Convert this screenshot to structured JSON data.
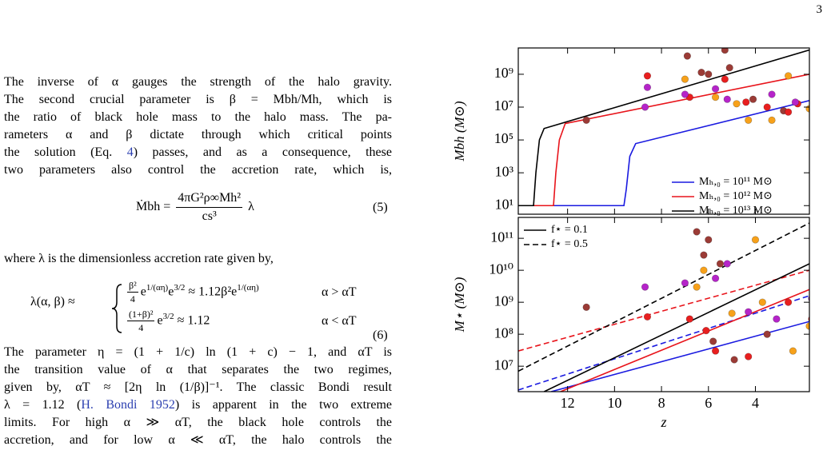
{
  "page_number": "3",
  "body": {
    "para1": [
      "The inverse of α gauges the strength of the halo gravity.",
      "The second crucial parameter is β = Mbh/Mh, which is",
      "the ratio of black hole mass to the halo mass. The pa-",
      "rameters α and β dictate through which critical points",
      [
        "the solution (Eq. ",
        "4",
        ") passes, and as a consequence, these"
      ],
      "two parameters also control the accretion rate, which is,"
    ],
    "para2": "where λ is the dimensionless accretion rate given by,",
    "para3": [
      "The parameter η = (1 + 1/c) ln (1 + c) − 1, and αT is",
      "the transition value of α that separates the two regimes,",
      "given by, αT ≈ [2η ln (1/β)]⁻¹. The classic Bondi result",
      [
        "λ = 1.12 (",
        "H. Bondi 1952",
        ") is apparent in the two extreme"
      ],
      "limits. For high α ≫ αT, the black hole controls the",
      "accretion, and for low α ≪ αT, the halo controls the"
    ]
  },
  "eq5": {
    "lhs": "Ṁbh =",
    "num": "4πG²ρ∞Mh²",
    "den": "cs³",
    "rhs": "λ",
    "number": "(5)"
  },
  "eq6": {
    "lhs": "λ(α, β) ≈",
    "case1": {
      "num": "β²",
      "den": "4",
      "parts": [
        "e",
        "1/(αη)",
        "e",
        "3/2",
        " ≈ 1.12β²e",
        "1/(αη)"
      ],
      "condition": "α > αT"
    },
    "case2": {
      "num": "(1+β)²",
      "den": "4",
      "parts": [
        "e",
        "3/2",
        " ≈ 1.12"
      ],
      "condition": "α < αT"
    },
    "number": "(6)"
  },
  "chart_data": [
    {
      "type": "line",
      "ylabel": "Mbh (M⊙)",
      "xlim": [
        14.1,
        1.7
      ],
      "xticks": [
        12,
        10,
        8,
        6,
        4
      ],
      "xtick_labels": false,
      "ylim": [
        3,
        40000000000.0
      ],
      "log_y": true,
      "yticks": [
        {
          "value": 10,
          "label": "10¹"
        },
        {
          "value": 1000,
          "label": "10³"
        },
        {
          "value": 100000,
          "label": "10⁵"
        },
        {
          "value": 10000000,
          "label": "10⁷"
        },
        {
          "value": 1000000000,
          "label": "10⁹"
        }
      ],
      "legend": "lower right",
      "series": [
        {
          "name": "Mₕ,₀ = 10¹¹ M⊙",
          "color": "#1a1ae0",
          "style": "solid",
          "x": [
            14.1,
            9.6,
            9.5,
            9.35,
            9.1,
            1.7
          ],
          "values": [
            10,
            10,
            100,
            10000,
            60000,
            25000000
          ]
        },
        {
          "name": "Mₕ,₀ = 10¹² M⊙",
          "color": "#e8141b",
          "style": "solid",
          "x": [
            14.1,
            12.6,
            12.5,
            12.35,
            12.1,
            1.7
          ],
          "values": [
            10,
            10,
            1000,
            100000,
            1000000,
            1000000000
          ]
        },
        {
          "name": "Mₕ,₀ = 10¹³ M⊙",
          "color": "#000000",
          "style": "solid",
          "x": [
            14.1,
            13.45,
            13.35,
            13.2,
            13.0,
            1.7
          ],
          "values": [
            10,
            10,
            1000,
            100000,
            500000,
            30000000000
          ]
        }
      ],
      "scatter": [
        {
          "color": "#9b3b36",
          "x": [
            11.2,
            6.9,
            6.0,
            5.3,
            5.1,
            4.1,
            2.8,
            6.3
          ],
          "values": [
            1600000,
            13000000000,
            1000000000,
            30000000000,
            2500000000,
            30000000,
            6000000,
            1300000000
          ]
        },
        {
          "color": "#e81f1f",
          "x": [
            8.6,
            6.8,
            5.3,
            4.4,
            3.5,
            2.6,
            2.2
          ],
          "values": [
            800000000,
            40000000,
            500000000,
            20000000,
            10000000,
            5000000,
            16000000
          ]
        },
        {
          "color": "#f7a11a",
          "x": [
            7.0,
            5.7,
            4.8,
            4.3,
            3.3,
            2.6,
            1.7
          ],
          "values": [
            500000000,
            40000000,
            16000000,
            1600000,
            1600000,
            800000000,
            8000000
          ]
        },
        {
          "color": "#b524c9",
          "x": [
            8.7,
            8.6,
            7.0,
            5.7,
            5.2,
            3.3,
            2.3
          ],
          "values": [
            10000000,
            160000000,
            60000000,
            130000000,
            30000000,
            60000000,
            20000000
          ]
        }
      ]
    },
    {
      "type": "line",
      "ylabel": "M⋆ (M⊙)",
      "xlabel": "z",
      "xlim": [
        14.1,
        1.7
      ],
      "xticks": [
        12,
        10,
        8,
        6,
        4
      ],
      "xtick_labels": true,
      "ylim": [
        1600000,
        450000000000
      ],
      "log_y": true,
      "yticks": [
        {
          "value": 10000000,
          "label": "10⁷"
        },
        {
          "value": 100000000,
          "label": "10⁸"
        },
        {
          "value": 1000000000,
          "label": "10⁹"
        },
        {
          "value": 10000000000,
          "label": "10¹⁰"
        },
        {
          "value": 100000000000,
          "label": "10¹¹"
        }
      ],
      "legend": "upper left",
      "legend_entries": [
        {
          "name": "f⋆ = 0.1",
          "style": "solid",
          "color": "#000000"
        },
        {
          "name": "f⋆ = 0.5",
          "style": "dashed",
          "color": "#000000"
        }
      ],
      "series": [
        {
          "color": "#1a1ae0",
          "style": "solid",
          "x": [
            12.7,
            1.7
          ],
          "values": [
            1600000,
            250000000
          ]
        },
        {
          "color": "#1a1ae0",
          "style": "dashed",
          "x": [
            14.1,
            1.7
          ],
          "values": [
            1800000,
            1600000000
          ]
        },
        {
          "color": "#e8141b",
          "style": "solid",
          "x": [
            12.3,
            1.7
          ],
          "values": [
            1600000,
            2500000000
          ]
        },
        {
          "color": "#e8141b",
          "style": "dashed",
          "x": [
            14.1,
            1.7
          ],
          "values": [
            30000000,
            10000000000
          ]
        },
        {
          "color": "#000000",
          "style": "solid",
          "x": [
            13.0,
            1.7
          ],
          "values": [
            1600000,
            16000000000
          ]
        },
        {
          "color": "#000000",
          "style": "dashed",
          "x": [
            14.1,
            1.7
          ],
          "values": [
            7000000,
            300000000000
          ]
        }
      ],
      "scatter": [
        {
          "color": "#9b3b36",
          "x": [
            11.2,
            6.5,
            6.2,
            6.0,
            5.5,
            5.8,
            4.9,
            3.5
          ],
          "values": [
            700000000,
            160000000000,
            30000000000,
            90000000000,
            16000000000,
            60000000,
            16000000,
            100000000
          ]
        },
        {
          "color": "#e81f1f",
          "x": [
            8.6,
            6.8,
            6.1,
            5.7,
            4.3,
            2.6,
            1.6
          ],
          "values": [
            350000000,
            300000000,
            130000000,
            30000000,
            20000000,
            1000000000,
            300000000
          ]
        },
        {
          "color": "#f7a11a",
          "x": [
            6.5,
            6.2,
            5.0,
            4.0,
            3.7,
            2.4,
            1.7
          ],
          "values": [
            3000000000,
            10000000000,
            450000000,
            90000000000,
            1000000000,
            30000000,
            180000000
          ]
        },
        {
          "color": "#b524c9",
          "x": [
            8.7,
            7.0,
            5.7,
            5.2,
            4.3,
            3.1,
            1.6
          ],
          "values": [
            3000000000,
            4000000000,
            5600000000,
            16000000000,
            500000000,
            300000000,
            1300000000
          ]
        }
      ]
    }
  ]
}
